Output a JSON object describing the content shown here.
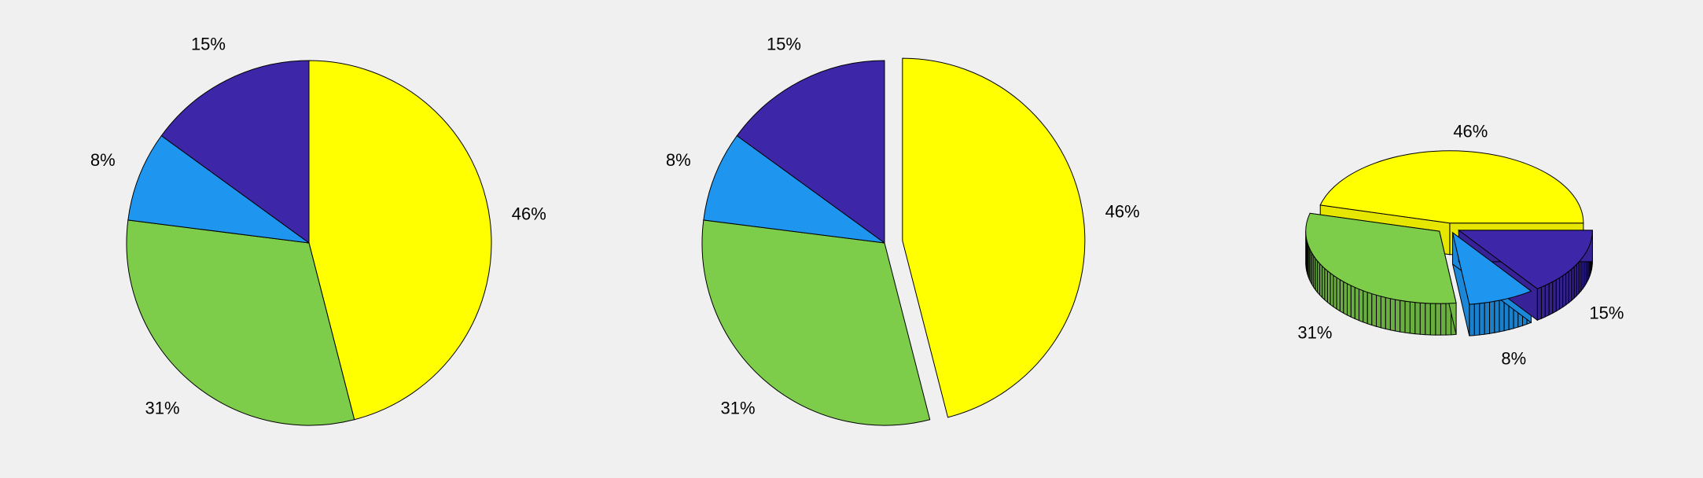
{
  "chart_data": [
    {
      "type": "pie",
      "title": "",
      "categories": [
        "46%",
        "31%",
        "8%",
        "15%"
      ],
      "values": [
        46,
        31,
        8,
        15
      ],
      "labels": [
        "46%",
        "31%",
        "8%",
        "15%"
      ],
      "colors": [
        "#ffff00",
        "#7dcd4b",
        "#1e96f0",
        "#3d26a8"
      ],
      "explode": [
        0,
        0,
        0,
        0
      ],
      "legend": "none"
    },
    {
      "type": "pie",
      "title": "",
      "categories": [
        "46%",
        "31%",
        "8%",
        "15%"
      ],
      "values": [
        46,
        31,
        8,
        15
      ],
      "labels": [
        "46%",
        "31%",
        "8%",
        "15%"
      ],
      "colors": [
        "#ffff00",
        "#7dcd4b",
        "#1e96f0",
        "#3d26a8"
      ],
      "explode": [
        1,
        0,
        0,
        0
      ],
      "legend": "none"
    },
    {
      "type": "pie",
      "style": "3d",
      "title": "",
      "categories": [
        "46%",
        "31%",
        "8%",
        "15%"
      ],
      "values": [
        46,
        31,
        8,
        15
      ],
      "labels": [
        "46%",
        "31%",
        "8%",
        "15%"
      ],
      "colors": [
        "#ffff00",
        "#7dcd4b",
        "#1e96f0",
        "#3d26a8"
      ],
      "explode": [
        1,
        1,
        1,
        1
      ],
      "legend": "none"
    }
  ]
}
